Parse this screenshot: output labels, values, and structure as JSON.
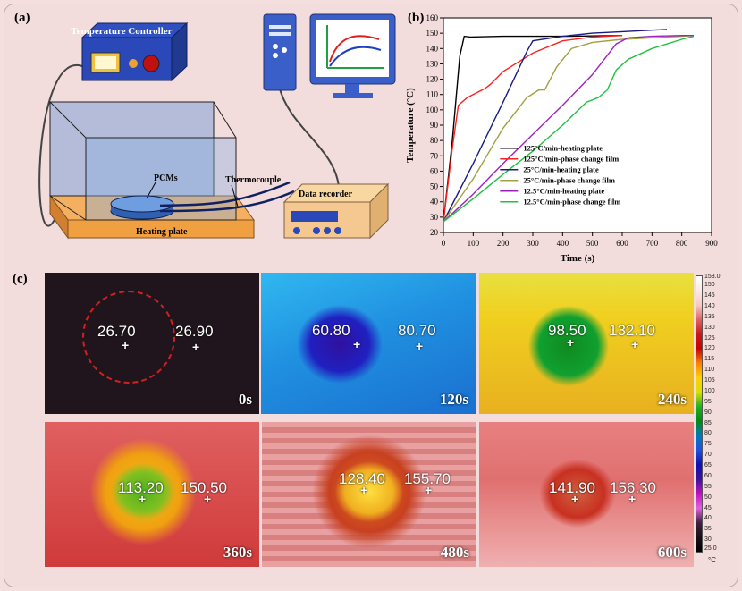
{
  "panel_labels": {
    "a": "(a)",
    "b": "(b)",
    "c": "(c)"
  },
  "schematic": {
    "temperature_controller": "Temperature Controller",
    "pcms": "PCMs",
    "thermocouple": "Thermocouple",
    "data_recorder": "Data recorder",
    "heating_plate": "Heating plate"
  },
  "chart_data": {
    "type": "line",
    "xlabel": "Time (s)",
    "ylabel": "Temperature (°C)",
    "xlim": [
      0,
      900
    ],
    "ylim": [
      20,
      160
    ],
    "xticks": [
      0,
      100,
      200,
      300,
      400,
      500,
      600,
      700,
      800,
      900
    ],
    "yticks": [
      20,
      30,
      40,
      50,
      60,
      70,
      80,
      90,
      100,
      110,
      120,
      130,
      140,
      150,
      160
    ],
    "legend_position": "bottom-right",
    "series": [
      {
        "name": "125°C/min-heating plate",
        "color": "#000000",
        "points": [
          [
            0,
            27
          ],
          [
            30,
            80
          ],
          [
            55,
            135
          ],
          [
            70,
            148
          ],
          [
            90,
            147.5
          ],
          [
            200,
            148
          ],
          [
            400,
            148
          ],
          [
            600,
            148.5
          ]
        ]
      },
      {
        "name": "125°C/min-phase change film",
        "color": "#ff2020",
        "points": [
          [
            0,
            27
          ],
          [
            30,
            75
          ],
          [
            50,
            103
          ],
          [
            80,
            108
          ],
          [
            140,
            114
          ],
          [
            160,
            117
          ],
          [
            200,
            125
          ],
          [
            300,
            137
          ],
          [
            400,
            145
          ],
          [
            500,
            147.5
          ],
          [
            600,
            148.5
          ]
        ]
      },
      {
        "name": "25°C/min-heating plate",
        "color": "#1a1a80",
        "points": [
          [
            0,
            27
          ],
          [
            100,
            65
          ],
          [
            200,
            105
          ],
          [
            280,
            138
          ],
          [
            300,
            145
          ],
          [
            400,
            148
          ],
          [
            500,
            150
          ],
          [
            600,
            151
          ],
          [
            700,
            152
          ],
          [
            750,
            152.5
          ]
        ]
      },
      {
        "name": "25°C/min-phase change film",
        "color": "#a0a040",
        "points": [
          [
            0,
            27
          ],
          [
            100,
            55
          ],
          [
            200,
            88
          ],
          [
            280,
            108
          ],
          [
            320,
            113
          ],
          [
            340,
            113
          ],
          [
            380,
            128
          ],
          [
            430,
            140
          ],
          [
            500,
            144
          ],
          [
            600,
            146
          ],
          [
            700,
            147
          ],
          [
            800,
            148
          ],
          [
            840,
            148.5
          ]
        ]
      },
      {
        "name": "12.5°C/min-heating plate",
        "color": "#a020c0",
        "points": [
          [
            0,
            27
          ],
          [
            100,
            45
          ],
          [
            200,
            65
          ],
          [
            300,
            84
          ],
          [
            400,
            103
          ],
          [
            500,
            123
          ],
          [
            580,
            143
          ],
          [
            620,
            147
          ],
          [
            700,
            148
          ],
          [
            800,
            148.5
          ],
          [
            840,
            148.5
          ]
        ]
      },
      {
        "name": "12.5°C/min-phase change film",
        "color": "#20c040",
        "points": [
          [
            0,
            27
          ],
          [
            100,
            42
          ],
          [
            200,
            58
          ],
          [
            300,
            73
          ],
          [
            400,
            90
          ],
          [
            480,
            105
          ],
          [
            520,
            108
          ],
          [
            550,
            113
          ],
          [
            580,
            126
          ],
          [
            620,
            133
          ],
          [
            700,
            140
          ],
          [
            800,
            146
          ],
          [
            840,
            148
          ]
        ]
      }
    ]
  },
  "thermal_images": [
    {
      "time": "0s",
      "left_value": "26.70",
      "right_value": "26.90"
    },
    {
      "time": "120s",
      "left_value": "60.80",
      "right_value": "80.70"
    },
    {
      "time": "240s",
      "left_value": "98.50",
      "right_value": "132.10"
    },
    {
      "time": "360s",
      "left_value": "113.20",
      "right_value": "150.50"
    },
    {
      "time": "480s",
      "left_value": "128.40",
      "right_value": "155.70"
    },
    {
      "time": "600s",
      "left_value": "141.90",
      "right_value": "156.30"
    }
  ],
  "colorbar": {
    "unit": "°C",
    "top_label": "153.0",
    "bottom_label": "25.0",
    "ticks": [
      150,
      145,
      140,
      135,
      130,
      125,
      120,
      115,
      110,
      105,
      100,
      95,
      90,
      85,
      80,
      75,
      70,
      65,
      60,
      55,
      50,
      45,
      40,
      35,
      30
    ],
    "colors": [
      "#ffffff",
      "#fbe8e4",
      "#f7c9c2",
      "#e06060",
      "#c81818",
      "#c80000",
      "#ff8000",
      "#ffd000",
      "#d8e000",
      "#20b020",
      "#008c10",
      "#0078c0",
      "#2050e0",
      "#1010b0",
      "#4010a0",
      "#c010c0",
      "#e060e0",
      "#402040",
      "#1a1018",
      "#000000"
    ]
  }
}
